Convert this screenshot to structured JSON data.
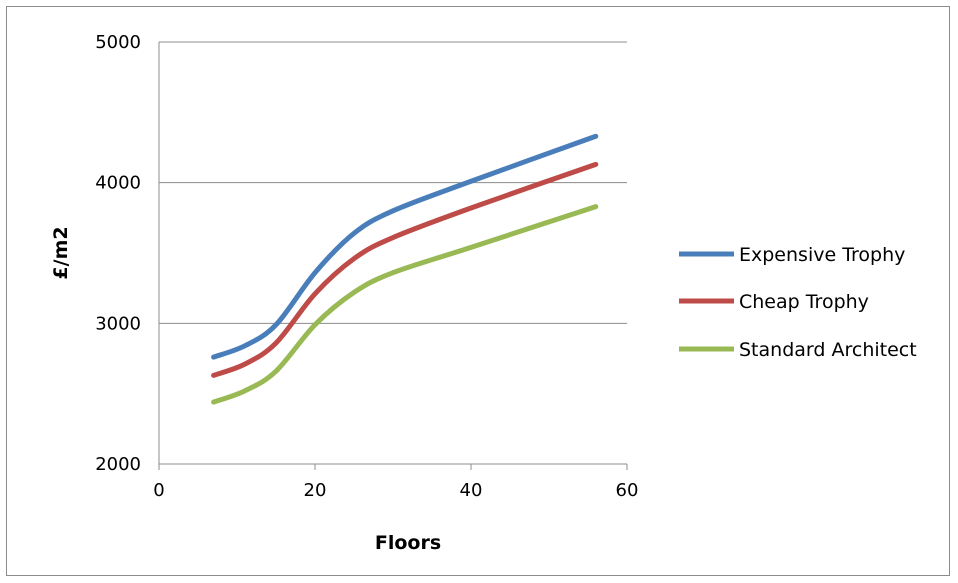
{
  "chart_data": {
    "type": "line",
    "title": "",
    "xlabel": "Floors",
    "ylabel": "£/m2",
    "xlim": [
      0,
      60
    ],
    "ylim": [
      2000,
      5000
    ],
    "x_ticks": [
      "0",
      "20",
      "40",
      "60"
    ],
    "y_ticks": [
      "2000",
      "3000",
      "4000",
      "5000"
    ],
    "grid": "horizontal",
    "legend_position": "right",
    "series": [
      {
        "name": "Expensive Trophy",
        "color": "#4a7ebb",
        "x": [
          7,
          11,
          15,
          20,
          25,
          30,
          40,
          56
        ],
        "y": [
          2760,
          2840,
          2990,
          3360,
          3640,
          3800,
          4010,
          4330
        ]
      },
      {
        "name": "Cheap Trophy",
        "color": "#be4b48",
        "x": [
          7,
          11,
          15,
          20,
          25,
          30,
          40,
          56
        ],
        "y": [
          2630,
          2710,
          2860,
          3210,
          3460,
          3610,
          3820,
          4130
        ]
      },
      {
        "name": "Standard Architect",
        "color": "#98b954",
        "x": [
          7,
          11,
          15,
          20,
          25,
          30,
          40,
          56
        ],
        "y": [
          2440,
          2520,
          2660,
          2990,
          3220,
          3360,
          3540,
          3830
        ]
      }
    ]
  }
}
